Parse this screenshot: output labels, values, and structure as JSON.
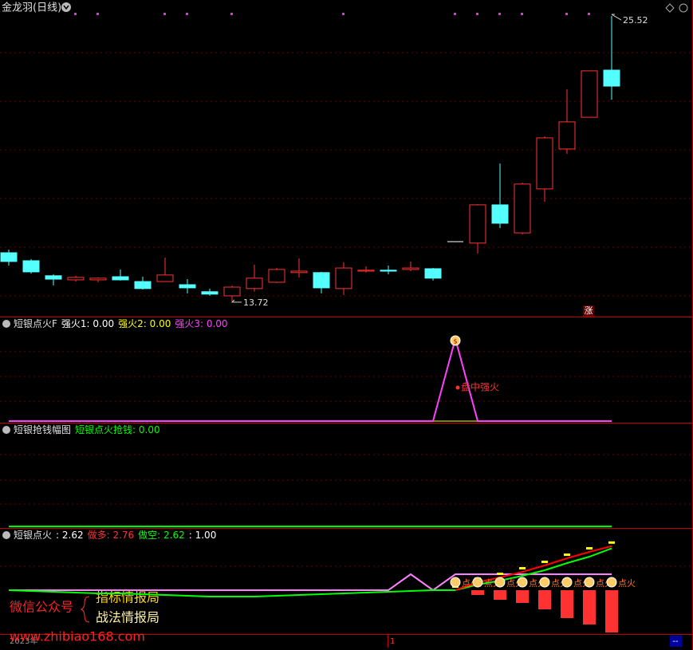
{
  "header": {
    "title": "金龙羽(日线)"
  },
  "chart_data": [
    {
      "type": "candlestick",
      "open": [
        15.73,
        15.4,
        14.78,
        14.61,
        14.61,
        14.74,
        14.54,
        14.54,
        14.41,
        14.12,
        13.95,
        14.25,
        14.51,
        14.91,
        14.91,
        14.25,
        14.97,
        15.01,
        15.04,
        15.07,
        16.19,
        16.13,
        17.71,
        16.55,
        18.37,
        20.02,
        21.33,
        23.28
      ],
      "high": [
        15.86,
        15.47,
        14.84,
        14.78,
        14.71,
        15.04,
        14.74,
        15.53,
        14.64,
        14.25,
        14.38,
        15.24,
        15.1,
        15.5,
        14.94,
        15.34,
        15.17,
        15.2,
        15.37,
        15.1,
        16.19,
        17.74,
        19.42,
        18.63,
        20.54,
        22.49,
        23.25,
        25.52
      ],
      "low": [
        15.2,
        14.87,
        14.38,
        14.54,
        14.51,
        14.58,
        14.21,
        14.54,
        14.05,
        13.95,
        13.72,
        14.12,
        14.48,
        14.71,
        14.05,
        13.98,
        14.91,
        14.84,
        14.97,
        14.58,
        16.19,
        15.7,
        16.75,
        16.49,
        17.84,
        19.82,
        21.33,
        22.06
      ],
      "close": [
        15.37,
        14.94,
        14.64,
        14.71,
        14.68,
        14.61,
        14.25,
        14.81,
        14.28,
        14.02,
        14.31,
        14.68,
        15.04,
        14.97,
        14.28,
        15.1,
        15.01,
        14.97,
        15.1,
        14.68,
        16.19,
        17.71,
        16.95,
        18.57,
        20.48,
        21.14,
        23.25,
        22.62
      ],
      "ylim": [
        13.09,
        26.18
      ],
      "up_color": "#ff3232",
      "down_color": "#54ffff",
      "flat_color": "#ffffff",
      "badge": "涨"
    },
    {
      "type": "line",
      "title": "短银点火F",
      "legend": [
        {
          "text": "强火1: 0.00",
          "color": "#ffffff"
        },
        {
          "text": "强火2: 0.00",
          "color": "#ffff00"
        },
        {
          "text": "强火3: 0.00",
          "color": "#ff40ff"
        }
      ],
      "series": [
        {
          "color": "#ff40ff",
          "values": [
            0,
            0,
            0,
            0,
            0,
            0,
            0,
            0,
            0,
            0,
            0,
            0,
            0,
            0,
            0,
            0,
            0,
            0,
            0,
            0,
            1,
            0,
            0,
            0,
            0,
            0,
            0,
            0
          ]
        }
      ],
      "annotation": "盘中强火",
      "ylim": [
        -0.02,
        1.26
      ]
    },
    {
      "type": "line",
      "title": "短银抢钱幅图",
      "legend": [
        {
          "text": "短银点火抢钱: 0.00",
          "color": "#00ff00"
        }
      ],
      "series": [
        {
          "color": "#00ff00",
          "values": [
            0,
            0,
            0,
            0,
            0,
            0,
            0,
            0,
            0,
            0,
            0,
            0,
            0,
            0,
            0,
            0,
            0,
            0,
            0,
            0,
            0,
            0,
            0,
            0,
            0,
            0,
            0,
            0
          ]
        }
      ],
      "ylim": [
        -0.06,
        4
      ]
    },
    {
      "type": "line",
      "title": "短银点火",
      "legend": [
        {
          "text": ": 2.62",
          "color": "#ffffff"
        },
        {
          "text": "做多: 2.76",
          "color": "#ff3232"
        },
        {
          "text": "做空: 2.62",
          "color": "#00ff00"
        },
        {
          "text": ": 1.00",
          "color": "#ffffff"
        }
      ],
      "series": [
        {
          "color": "#ff3232",
          "kind": "bar",
          "values": [
            null,
            null,
            null,
            null,
            null,
            null,
            null,
            null,
            null,
            null,
            null,
            null,
            null,
            null,
            null,
            null,
            null,
            null,
            null,
            null,
            null,
            -0.3,
            -0.6,
            -0.8,
            -1.2,
            -1.75,
            -2.15,
            -2.65
          ]
        },
        {
          "color": "#ff80ff",
          "values": [
            0,
            0,
            0,
            0,
            0,
            0,
            0,
            0,
            0,
            0,
            0,
            0,
            0,
            0,
            0,
            0,
            0,
            0,
            1,
            0,
            1,
            1,
            1,
            1,
            1,
            1,
            1,
            1
          ]
        },
        {
          "color": "#00ff00",
          "values": [
            0,
            -0.05,
            -0.1,
            -0.15,
            -0.2,
            -0.2,
            -0.25,
            -0.3,
            -0.35,
            -0.4,
            -0.4,
            -0.4,
            -0.35,
            -0.3,
            -0.25,
            -0.2,
            -0.15,
            -0.1,
            -0.05,
            0,
            0,
            0.35,
            0.6,
            0.9,
            1.25,
            1.7,
            2.1,
            2.62
          ]
        },
        {
          "color": "#ff0000",
          "values": [
            null,
            null,
            null,
            null,
            null,
            null,
            null,
            null,
            null,
            null,
            null,
            null,
            null,
            null,
            null,
            null,
            null,
            null,
            null,
            null,
            0,
            0.5,
            0.8,
            1.15,
            1.55,
            2.0,
            2.4,
            2.76
          ]
        }
      ],
      "fire_label": "点火",
      "ylim": [
        -2.75,
        3.85
      ]
    }
  ],
  "watermark": {
    "wechat": "微信公众号",
    "line1": "指标情报局",
    "line2": "战法情报局",
    "url": "www.zhibiao168.com"
  },
  "footer": {
    "year": "2023年",
    "marker": "1",
    "corner": "--"
  }
}
